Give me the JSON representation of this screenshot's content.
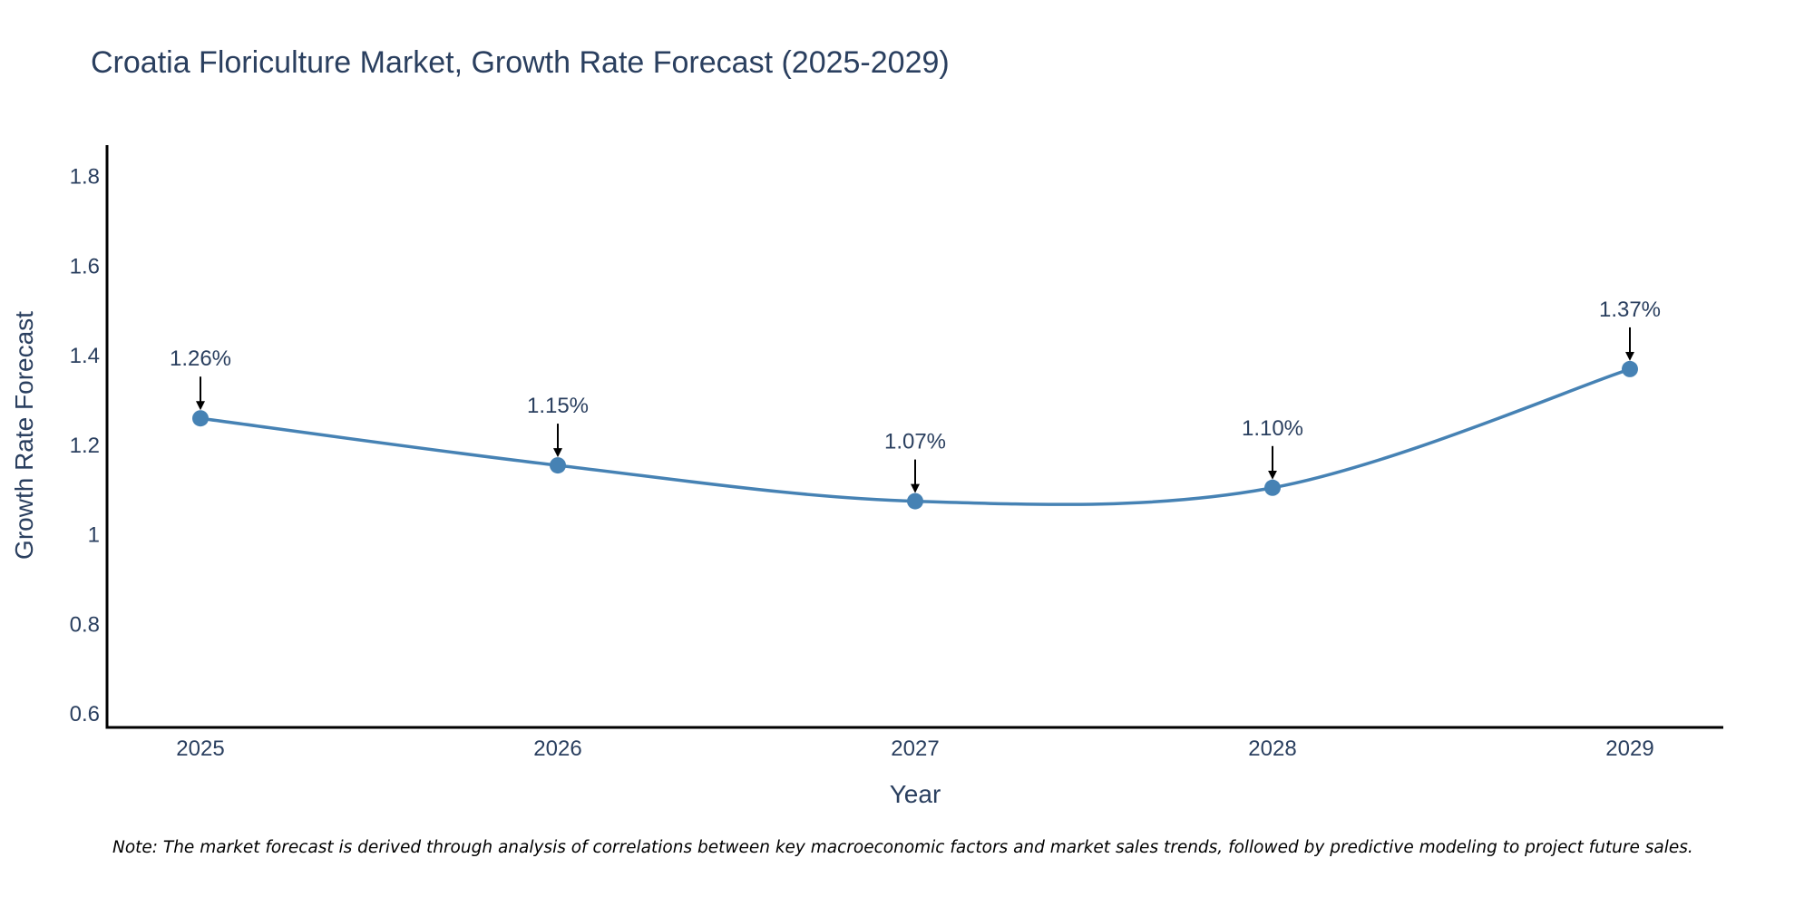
{
  "chart_data": {
    "type": "line",
    "title": "Croatia Floriculture Market, Growth Rate Forecast (2025-2029)",
    "xlabel": "Year",
    "ylabel": "Growth Rate Forecast",
    "categories": [
      "2025",
      "2026",
      "2027",
      "2028",
      "2029"
    ],
    "values": [
      1.26,
      1.155,
      1.075,
      1.105,
      1.37
    ],
    "data_labels": [
      "1.26%",
      "1.15%",
      "1.07%",
      "1.10%",
      "1.37%"
    ],
    "ylim": [
      0.57,
      1.87
    ],
    "yticks": [
      0.6,
      0.8,
      1,
      1.2,
      1.4,
      1.6,
      1.8
    ],
    "ytick_labels": [
      "0.6",
      "0.8",
      "1",
      "1.2",
      "1.4",
      "1.6",
      "1.8"
    ],
    "line_shape": "spline",
    "grid": false,
    "colors": {
      "line": "#4682b4",
      "marker": "#4682b4",
      "text": "#2a3f5f",
      "axis": "#000000",
      "arrow": "#000000"
    }
  },
  "note": "Note: The market forecast is derived through analysis of correlations between key macroeconomic factors and market sales trends, followed by predictive modeling to project future sales."
}
